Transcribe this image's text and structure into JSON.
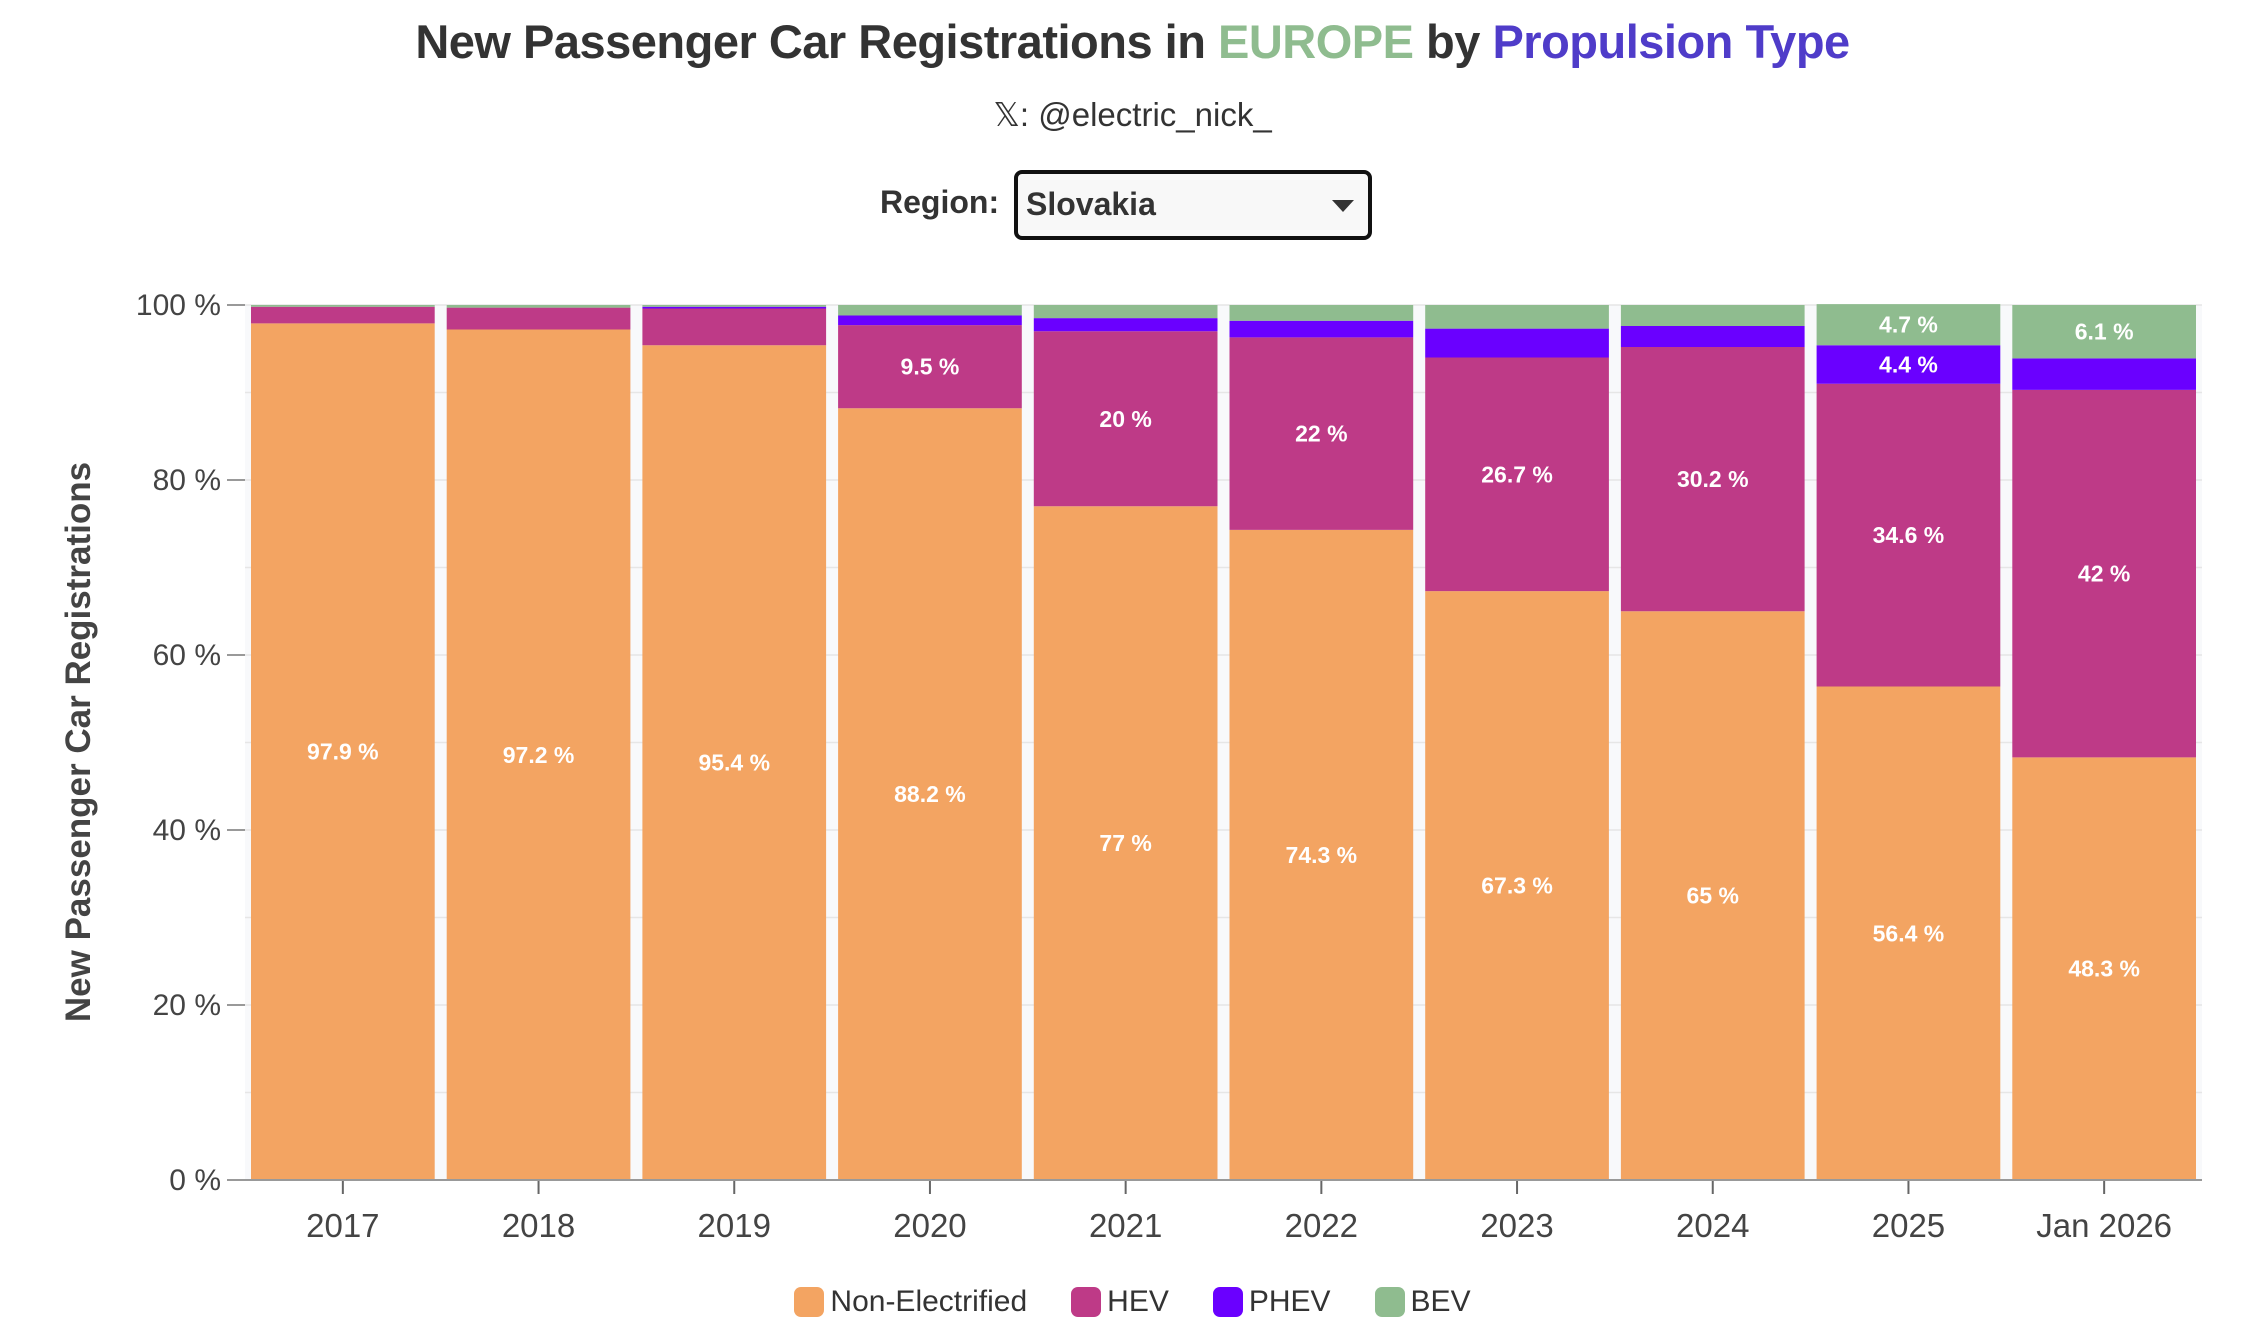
{
  "header": {
    "title_part1": "New Passenger Car Registrations in ",
    "title_europe": "EUROPE",
    "title_part2": " by ",
    "title_ptype": "Propulsion Type",
    "subtitle": "𝕏: @electric_nick_"
  },
  "region_selector": {
    "label": "Region:",
    "selected": "Slovakia",
    "icon": "caret-down-icon"
  },
  "colors": {
    "Non-Electrified": "#f3a462",
    "HEV": "#be3a87",
    "PHEV": "#6a00ff",
    "BEV": "#8fbc8f",
    "europe_accent": "#8fbc8f",
    "ptype_accent": "#4f3cc9"
  },
  "chart_data": {
    "type": "bar",
    "stacked": true,
    "title": "New Passenger Car Registrations in EUROPE by Propulsion Type",
    "xlabel": "",
    "ylabel": "New Passenger Car Registrations",
    "ylim": [
      0,
      100
    ],
    "yticks": [
      "0 %",
      "20 %",
      "40 %",
      "60 %",
      "80 %",
      "100 %"
    ],
    "ytick_values": [
      0,
      20,
      40,
      60,
      80,
      100
    ],
    "grid": true,
    "legend_position": "bottom-center",
    "categories": [
      "2017",
      "2018",
      "2019",
      "2020",
      "2021",
      "2022",
      "2023",
      "2024",
      "2025",
      "Jan 2026"
    ],
    "series": [
      {
        "name": "Non-Electrified",
        "values": [
          97.9,
          97.2,
          95.4,
          88.2,
          77.0,
          74.3,
          67.3,
          65.0,
          56.4,
          48.3
        ],
        "labels": [
          "97.9 %",
          "97.2 %",
          "95.4 %",
          "88.2 %",
          "77 %",
          "74.3 %",
          "67.3 %",
          "65 %",
          "56.4 %",
          "48.3 %"
        ]
      },
      {
        "name": "HEV",
        "values": [
          1.9,
          2.5,
          4.2,
          9.5,
          20.0,
          22.0,
          26.7,
          30.2,
          34.6,
          42.0
        ],
        "labels": [
          "",
          "",
          "",
          "9.5 %",
          "20 %",
          "22 %",
          "26.7 %",
          "30.2 %",
          "34.6 %",
          "42 %"
        ]
      },
      {
        "name": "PHEV",
        "values": [
          0.0,
          0.0,
          0.2,
          1.1,
          1.5,
          1.9,
          3.3,
          2.4,
          4.4,
          3.6
        ],
        "labels": [
          "",
          "",
          "",
          "",
          "",
          "",
          "",
          "",
          "4.4 %",
          ""
        ]
      },
      {
        "name": "BEV",
        "values": [
          0.2,
          0.3,
          0.2,
          1.2,
          1.5,
          1.8,
          2.7,
          2.4,
          4.7,
          6.1
        ],
        "labels": [
          "",
          "",
          "",
          "",
          "",
          "",
          "",
          "",
          "4.7 %",
          "6.1 %"
        ]
      }
    ]
  },
  "legend": [
    {
      "name": "Non-Electrified"
    },
    {
      "name": "HEV"
    },
    {
      "name": "PHEV"
    },
    {
      "name": "BEV"
    }
  ]
}
